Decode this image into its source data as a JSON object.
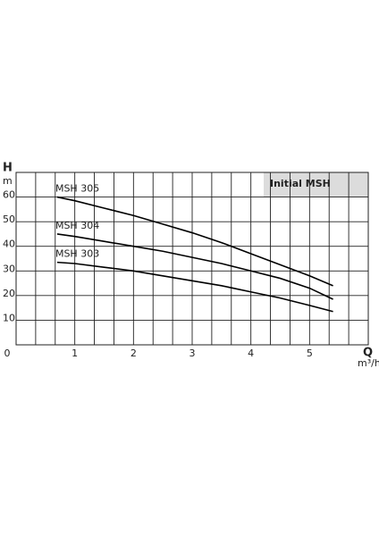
{
  "chart_data": {
    "type": "line",
    "title": "Initial MSH",
    "y_label": "H",
    "y_unit": "m",
    "x_label": "Q",
    "x_unit": "m³/h",
    "x": [
      0.7,
      1,
      1.5,
      2,
      2.5,
      3,
      3.5,
      4,
      4.5,
      5,
      5.4
    ],
    "series": [
      {
        "name": "MSH 305",
        "color": "#000000",
        "values": [
          60,
          58.5,
          55.5,
          52.5,
          49,
          45.5,
          41.5,
          37,
          32.5,
          28,
          24
        ]
      },
      {
        "name": "MSH 304",
        "color": "#000000",
        "values": [
          45,
          44,
          42,
          40,
          38,
          35.5,
          33,
          30,
          27,
          23,
          18.5
        ]
      },
      {
        "name": "MSH 303",
        "color": "#000000",
        "values": [
          33.5,
          33,
          31.5,
          30,
          28,
          26,
          24,
          21.5,
          19,
          16,
          13.5
        ]
      }
    ],
    "xlim": [
      0,
      6
    ],
    "xticks": [
      0,
      1,
      2,
      3,
      4,
      5
    ],
    "ylim": [
      0,
      70
    ],
    "yticks": [
      10,
      20,
      30,
      40,
      50,
      60
    ],
    "grid": true
  }
}
